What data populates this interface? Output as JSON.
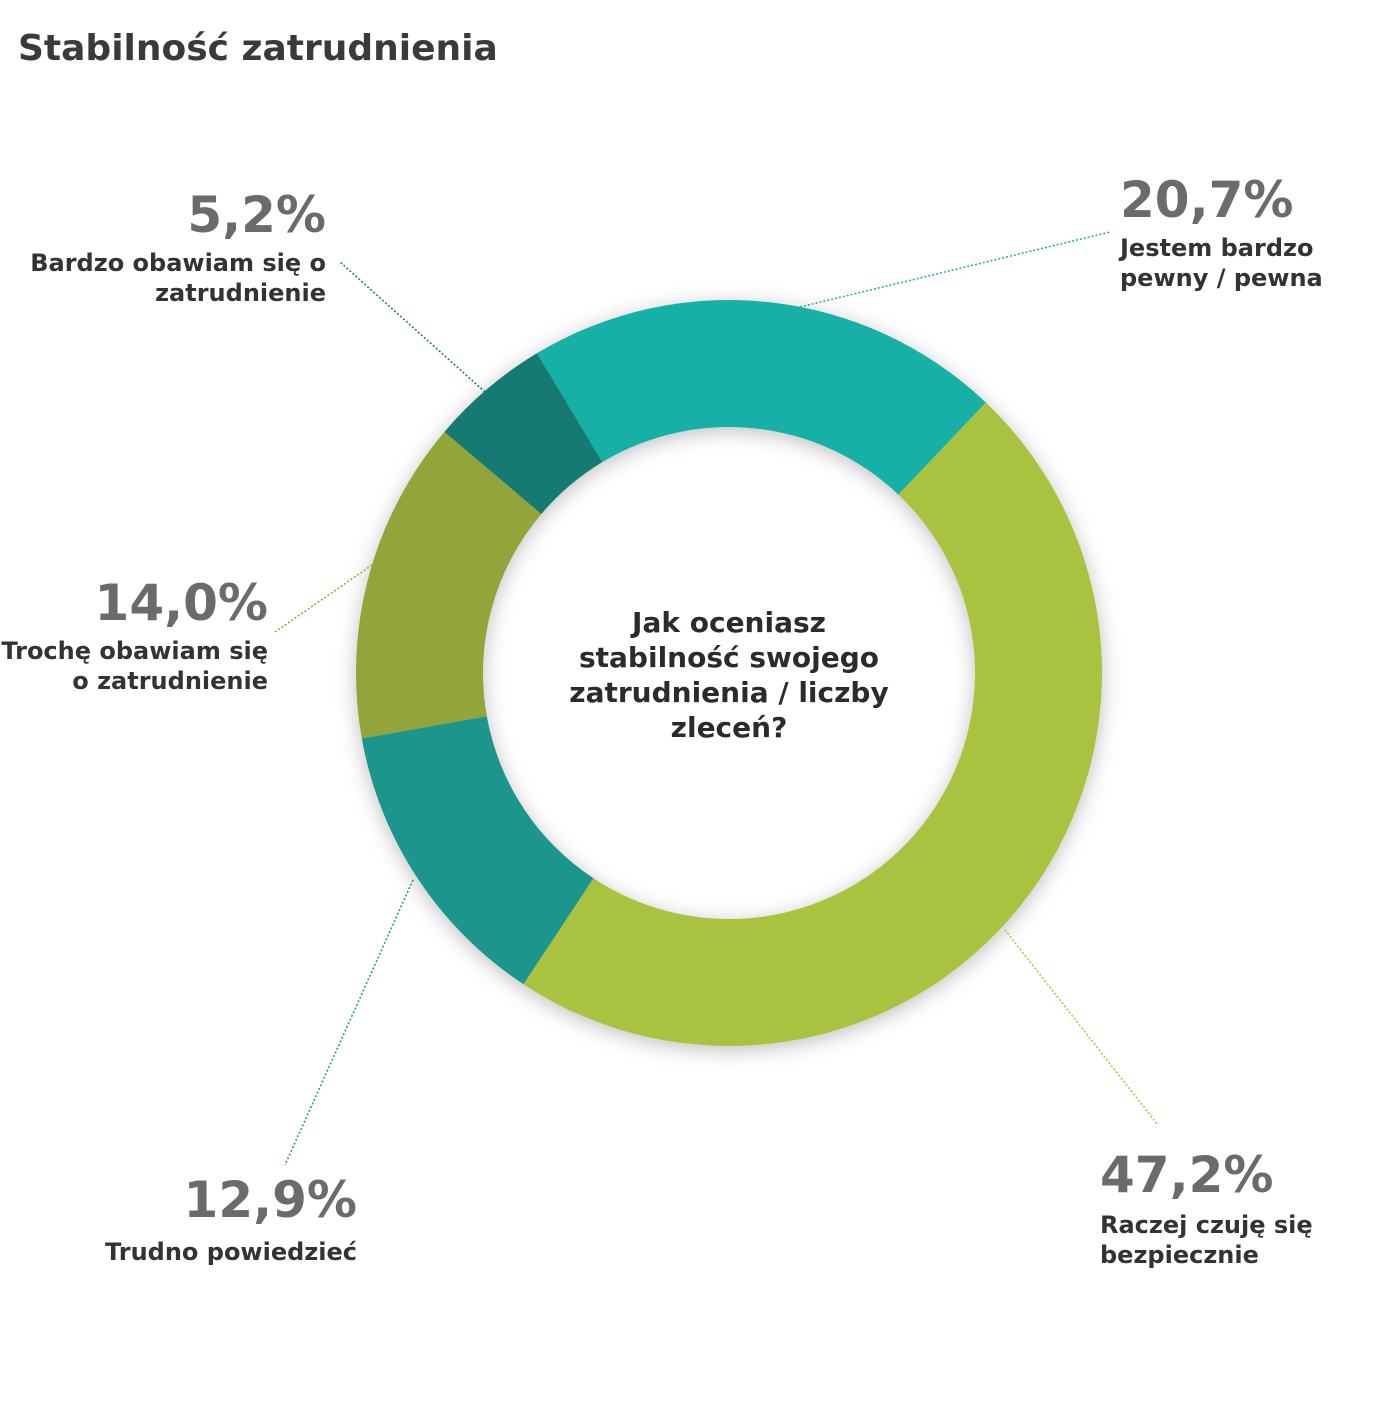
{
  "chart_data": {
    "type": "donut",
    "title": "Stabilność zatrudnienia",
    "center_text": "Jak oceniasz stabilność swojego zatrudnienia / liczby zleceń?",
    "categories": [
      "Jestem bardzo pewny / pewna",
      "Raczej czuję się bezpiecznie",
      "Trudno powiedzieć",
      "Trochę obawiam się o zatrudnienie",
      "Bardzo obawiam się o zatrudnienie"
    ],
    "values": [
      20.7,
      47.2,
      12.9,
      14.0,
      5.2
    ],
    "value_labels": [
      "20,7%",
      "47,2%",
      "12,9%",
      "14,0%",
      "5,2%"
    ],
    "colors": [
      "#12b0a6",
      "#a9c23f",
      "#1f968d",
      "#91a53a",
      "#127a72"
    ]
  }
}
